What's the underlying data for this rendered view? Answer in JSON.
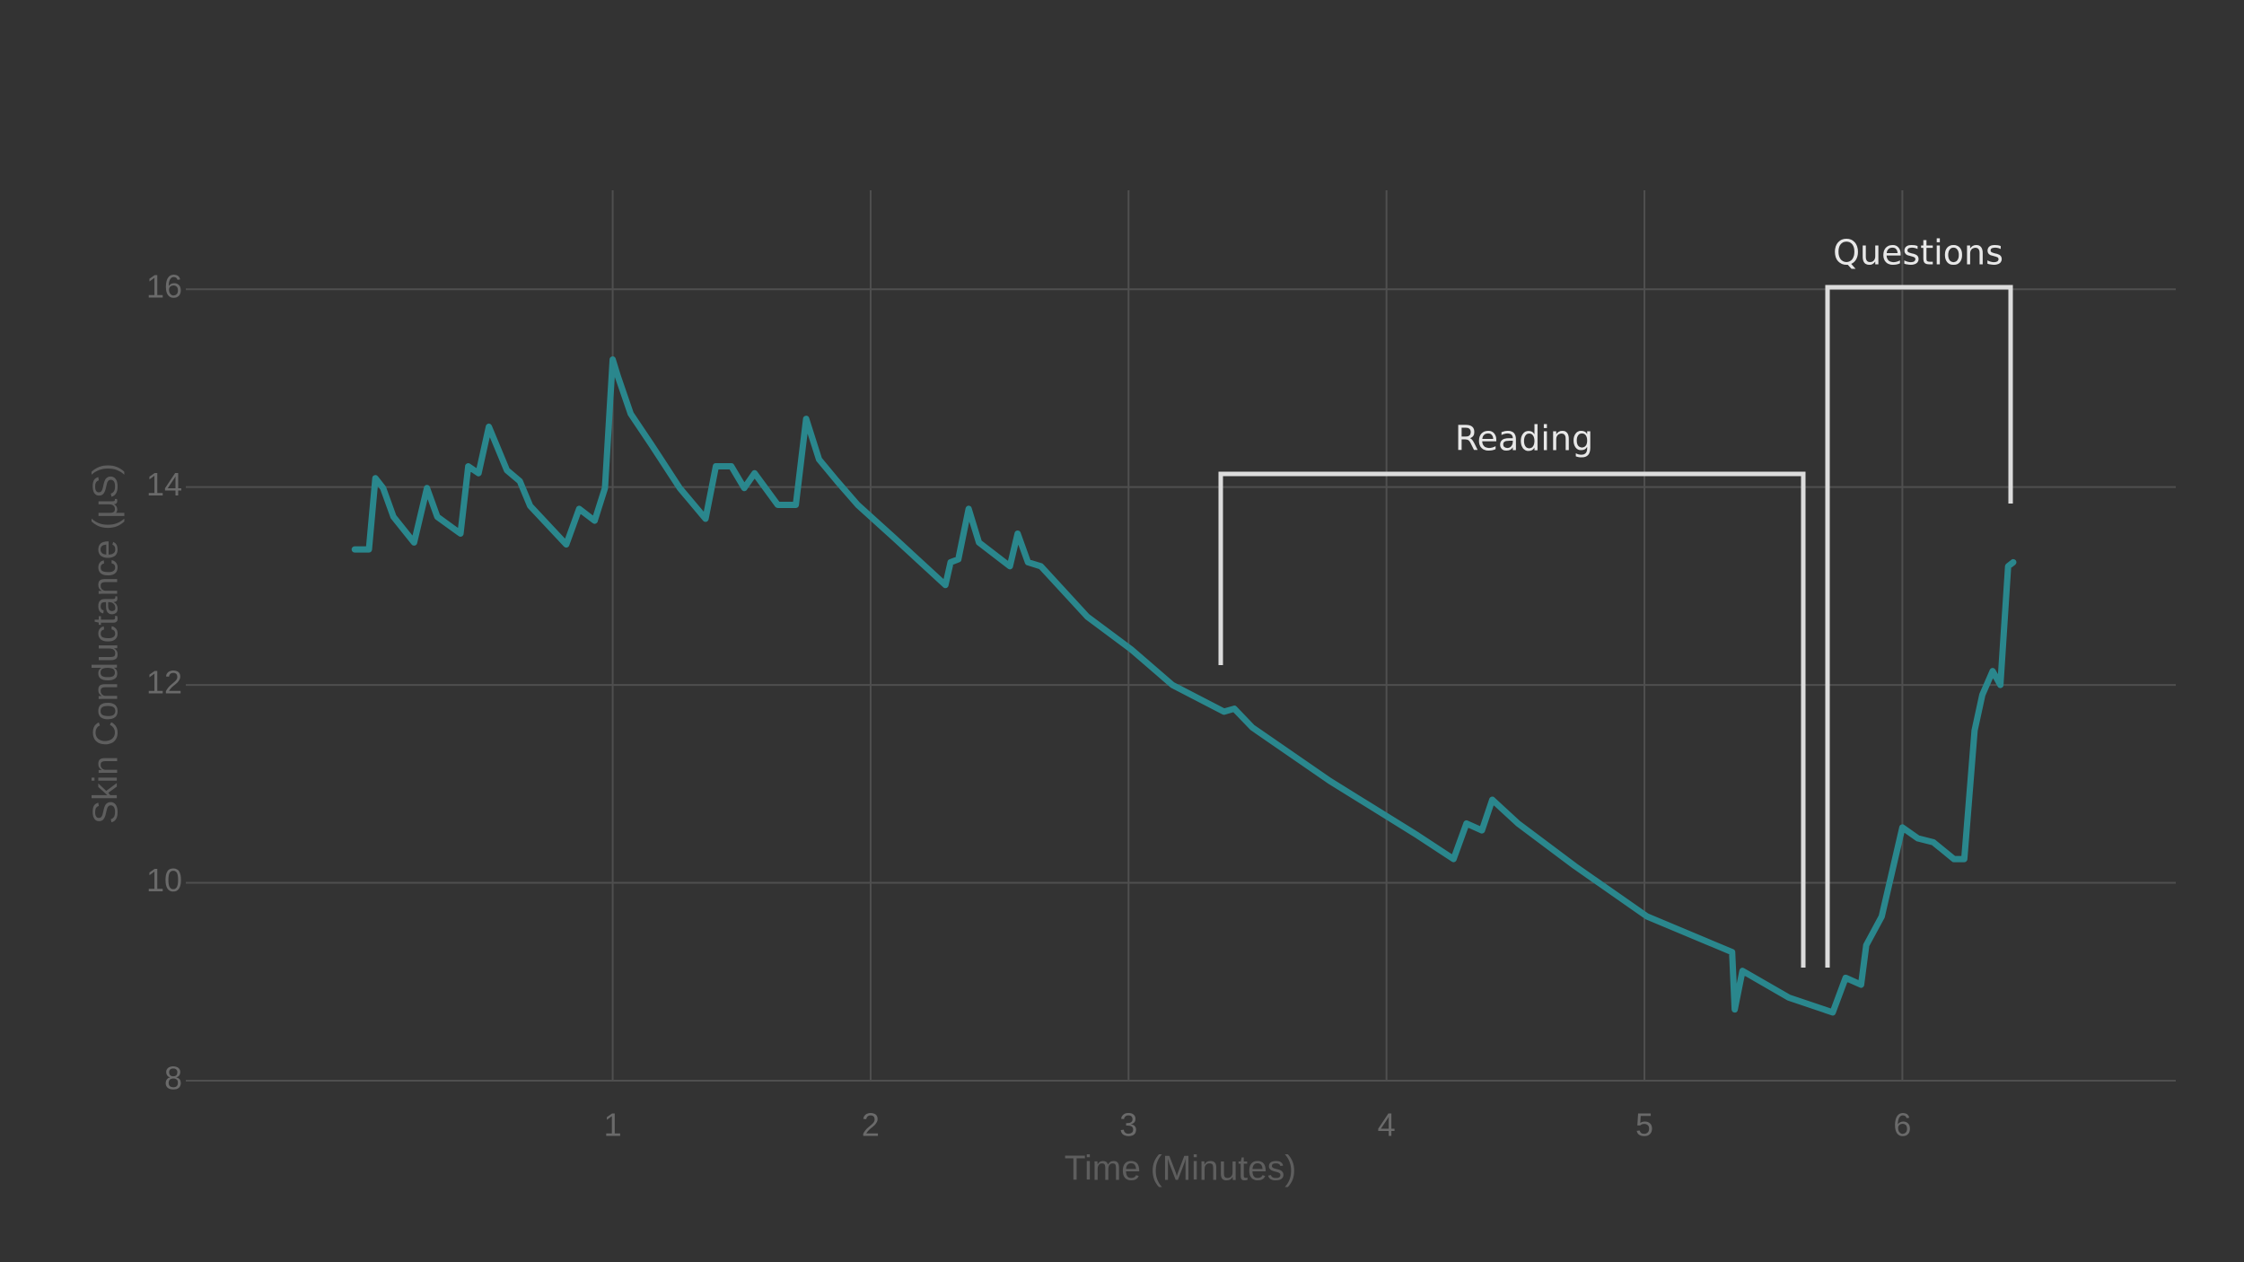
{
  "chart_data": {
    "type": "line",
    "x_label": "Time (Minutes)",
    "y_label": "Skin Conductance (µS)",
    "x": [
      0.0,
      0.055,
      0.08,
      0.11,
      0.15,
      0.23,
      0.28,
      0.32,
      0.41,
      0.44,
      0.48,
      0.52,
      0.59,
      0.64,
      0.68,
      0.82,
      0.87,
      0.93,
      0.97,
      1.0,
      1.02,
      1.07,
      1.15,
      1.26,
      1.36,
      1.4,
      1.46,
      1.51,
      1.55,
      1.64,
      1.71,
      1.75,
      1.8,
      1.87,
      1.95,
      2.09,
      2.29,
      2.31,
      2.34,
      2.38,
      2.42,
      2.54,
      2.57,
      2.61,
      2.66,
      2.84,
      3.01,
      3.17,
      3.37,
      3.41,
      3.48,
      3.78,
      4.12,
      4.26,
      4.31,
      4.37,
      4.41,
      4.51,
      4.73,
      5.01,
      5.34,
      5.35,
      5.38,
      5.56,
      5.73,
      5.78,
      5.84,
      5.86,
      5.92,
      6.0,
      6.06,
      6.12,
      6.2,
      6.24,
      6.28,
      6.31,
      6.35,
      6.38,
      6.41,
      6.43
    ],
    "series": [
      {
        "color": "#2a878d",
        "values": [
          13.37,
          13.37,
          14.09,
          13.99,
          13.7,
          13.44,
          13.99,
          13.7,
          13.53,
          14.21,
          14.14,
          14.61,
          14.17,
          14.06,
          13.81,
          13.42,
          13.78,
          13.66,
          13.99,
          15.29,
          15.12,
          14.74,
          14.43,
          13.99,
          13.68,
          14.21,
          14.21,
          13.99,
          14.14,
          13.82,
          13.82,
          14.69,
          14.28,
          14.06,
          13.82,
          13.49,
          13.01,
          13.24,
          13.27,
          13.78,
          13.44,
          13.2,
          13.53,
          13.24,
          13.2,
          12.69,
          12.36,
          12.0,
          11.73,
          11.76,
          11.57,
          11.03,
          10.48,
          10.24,
          10.6,
          10.53,
          10.84,
          10.6,
          10.17,
          9.66,
          9.3,
          8.72,
          9.11,
          8.84,
          8.69,
          9.04,
          8.97,
          9.37,
          9.66,
          10.56,
          10.45,
          10.41,
          10.24,
          10.24,
          11.54,
          11.9,
          12.14,
          12.0,
          13.2,
          13.24
        ]
      }
    ],
    "xlim": [
      -0.655,
      7.06
    ],
    "xticks": [
      1,
      2,
      3,
      4,
      5,
      6
    ],
    "ylim": [
      8,
      17
    ],
    "yticks": [
      8,
      10,
      12,
      14,
      16
    ],
    "grid": true,
    "annotations": [
      "Reading",
      "Questions"
    ]
  }
}
